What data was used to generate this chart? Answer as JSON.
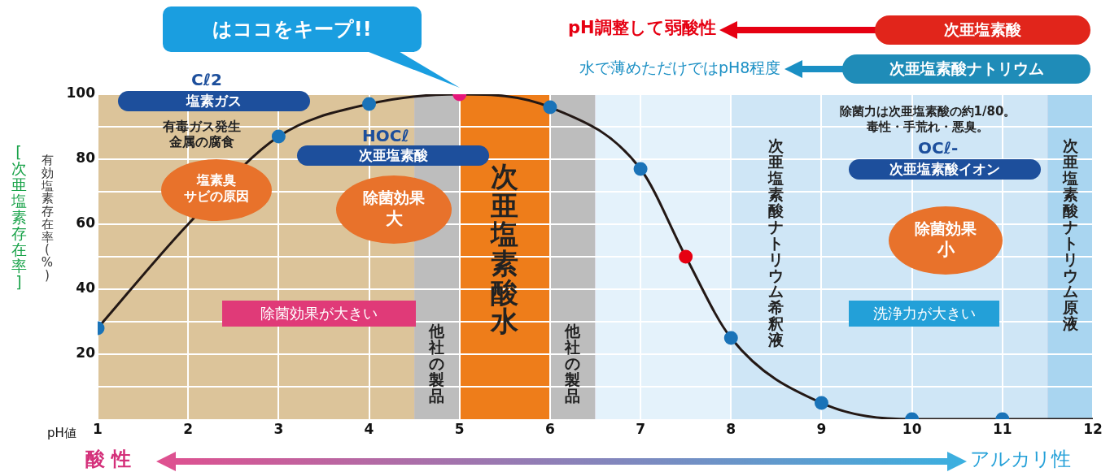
{
  "chart_data": {
    "type": "line",
    "xlabel": "pH値",
    "ylabel": "有効塩素存在率(%)",
    "x": [
      1,
      2,
      3,
      4,
      5,
      6,
      7,
      7.5,
      8,
      9,
      10,
      11,
      12
    ],
    "series": [
      {
        "color": "#231815",
        "values": [
          28,
          60,
          87,
          97,
          100,
          96,
          77,
          50,
          25,
          5,
          0,
          0,
          0
        ],
        "colors": [
          "#1a73b8",
          null,
          "#1a73b8",
          "#1a73b8",
          "#e6177b",
          "#1a73b8",
          "#1a73b8",
          "#e60012",
          "#1a73b8",
          "#1a73b8",
          "#1a73b8",
          "#1a73b8",
          null
        ]
      }
    ],
    "xlim": [
      1,
      12
    ],
    "xticks": [
      1,
      2,
      3,
      4,
      5,
      6,
      7,
      8,
      9,
      10,
      11,
      12
    ],
    "ylim": [
      0,
      100
    ],
    "yticks": [
      {
        "value": 10,
        "label": null
      },
      20,
      {
        "value": 30,
        "label": null
      },
      40,
      {
        "value": 50,
        "label": null
      },
      60,
      {
        "value": 70,
        "label": null
      },
      80,
      {
        "value": 90,
        "label": null
      },
      100
    ],
    "grid": true,
    "legend": false,
    "marker": "circle",
    "line_style": "solid",
    "bands": [
      {
        "axis": "x",
        "from": 1,
        "to": 4.5,
        "color": "#dcc49a"
      },
      {
        "axis": "x",
        "from": 4.5,
        "to": 5,
        "color": "#bdbdbd",
        "label": "他社の製品"
      },
      {
        "axis": "x",
        "from": 5,
        "to": 6,
        "color": "#ee7d1a",
        "label": "次亜塩素酸水"
      },
      {
        "axis": "x",
        "from": 6,
        "to": 6.5,
        "color": "#bdbdbd",
        "label": "他社の製品"
      },
      {
        "axis": "x",
        "from": 6.5,
        "to": 8,
        "color": "#e4f2fb"
      },
      {
        "axis": "x",
        "from": 8,
        "to": 11.5,
        "color": "#cfe6f6",
        "label": "次亜塩素酸ナトリウム希釈液"
      },
      {
        "axis": "x",
        "from": 11.5,
        "to": 12,
        "color": "#a9d5f0",
        "label": "次亜塩素酸ナトリウム原液"
      }
    ],
    "annotations": [
      {
        "text": "はココをキープ!!",
        "x": 5,
        "y": 100
      },
      "pH調整して弱酸性",
      "次亜塩素酸",
      "水で薄めただけではpH8程度",
      "次亜塩素酸ナトリウム",
      "Cℓ2",
      "塩素ガス",
      "有毒ガス発生",
      "金属の腐食",
      "塩素臭",
      "サビの原因",
      "HOCℓ",
      "次亜塩素酸",
      "除菌効果",
      "大",
      "除菌効果が大きい",
      "除菌力は次亜塩素酸の約1/80。",
      "毒性・手荒れ・悪臭。",
      "OCℓ-",
      "次亜塩素酸イオン",
      "除菌効果",
      "小",
      "洗浄力が大きい",
      "[次亜塩素存在率]",
      "酸 性",
      "アルカリ性"
    ]
  }
}
